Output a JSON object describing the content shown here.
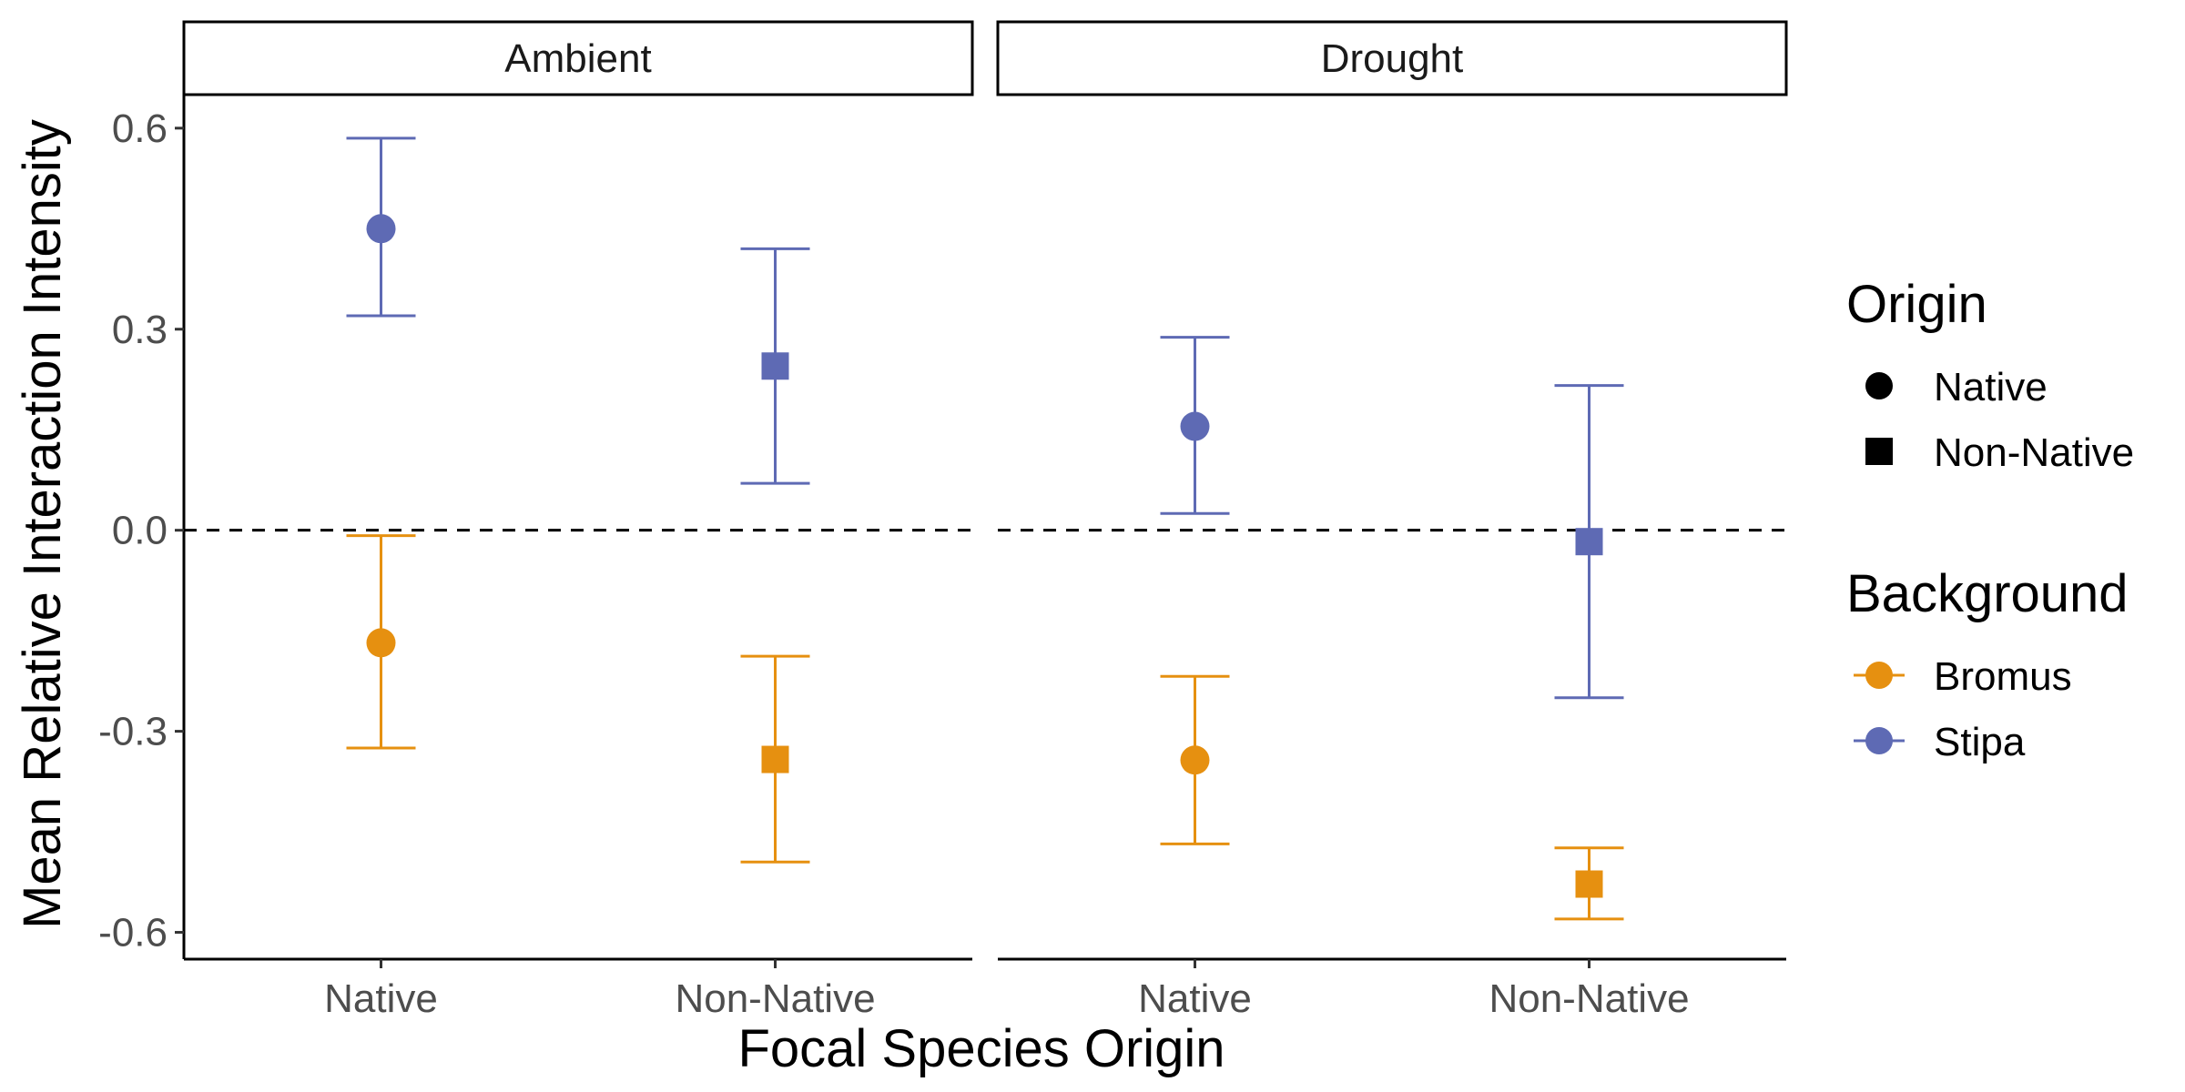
{
  "chart_data": {
    "type": "scatter",
    "xlabel": "Focal Species Origin",
    "ylabel": "Mean Relative Interaction Intensity",
    "panels": [
      "Ambient",
      "Drought"
    ],
    "categories": [
      "Native",
      "Non-Native"
    ],
    "y_ticks": [
      0.6,
      0.3,
      0.0,
      -0.3,
      -0.6
    ],
    "y_tick_labels": [
      "0.6",
      "0.3",
      "0.0",
      "-0.3",
      "-0.6"
    ],
    "ylim": [
      -0.64,
      0.65
    ],
    "reference_line": {
      "y": 0.0,
      "style": "dashed",
      "color": "#000000"
    },
    "grid": false,
    "legend_position": "right",
    "legend": {
      "origin": {
        "title": "Origin",
        "items": [
          {
            "label": "Native",
            "shape": "circle"
          },
          {
            "label": "Non-Native",
            "shape": "square"
          }
        ]
      },
      "background": {
        "title": "Background",
        "items": [
          {
            "label": "Bromus",
            "color": "#E69010"
          },
          {
            "label": "Stipa",
            "color": "#5E6AB4"
          }
        ]
      }
    },
    "series": [
      {
        "name": "Stipa",
        "color": "#5E6AB4",
        "points": [
          {
            "panel": "Ambient",
            "x": "Native",
            "y": 0.45,
            "ymin": 0.32,
            "ymax": 0.585
          },
          {
            "panel": "Ambient",
            "x": "Non-Native",
            "y": 0.245,
            "ymin": 0.07,
            "ymax": 0.42
          },
          {
            "panel": "Drought",
            "x": "Native",
            "y": 0.155,
            "ymin": 0.025,
            "ymax": 0.288
          },
          {
            "panel": "Drought",
            "x": "Non-Native",
            "y": -0.017,
            "ymin": -0.25,
            "ymax": 0.216
          }
        ]
      },
      {
        "name": "Bromus",
        "color": "#E69010",
        "points": [
          {
            "panel": "Ambient",
            "x": "Native",
            "y": -0.168,
            "ymin": -0.325,
            "ymax": -0.008
          },
          {
            "panel": "Ambient",
            "x": "Non-Native",
            "y": -0.342,
            "ymin": -0.495,
            "ymax": -0.188
          },
          {
            "panel": "Drought",
            "x": "Native",
            "y": -0.343,
            "ymin": -0.468,
            "ymax": -0.218
          },
          {
            "panel": "Drought",
            "x": "Non-Native",
            "y": -0.528,
            "ymin": -0.58,
            "ymax": -0.474
          }
        ]
      }
    ]
  }
}
